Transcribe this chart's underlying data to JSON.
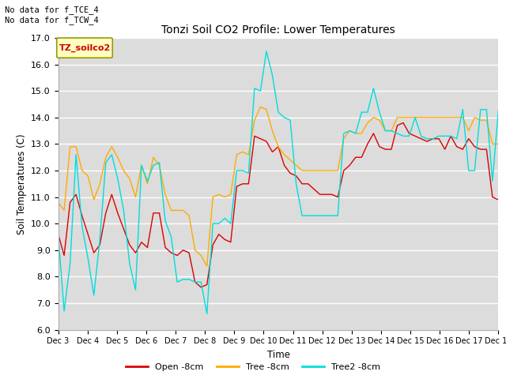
{
  "title": "Tonzi Soil CO2 Profile: Lower Temperatures",
  "xlabel": "Time",
  "ylabel": "Soil Temperatures (C)",
  "ylim": [
    6.0,
    17.0
  ],
  "yticks": [
    6.0,
    7.0,
    8.0,
    9.0,
    10.0,
    11.0,
    12.0,
    13.0,
    14.0,
    15.0,
    16.0,
    17.0
  ],
  "bg_color": "#dcdcdc",
  "note_text": "No data for f_TCE_4\nNo data for f_TCW_4",
  "legend_label_text": "TZ_soilco2",
  "xtick_labels": [
    "Dec 3",
    "Dec 4",
    "Dec 5",
    "Dec 6",
    "Dec 7",
    "Dec 8",
    "Dec 9",
    "Dec 10",
    "Dec 11",
    "Dec 12",
    "Dec 13",
    "Dec 14",
    "Dec 15",
    "Dec 16",
    "Dec 17",
    "Dec 18"
  ],
  "series": {
    "open": {
      "color": "#dd0000",
      "label": "Open -8cm",
      "values": [
        9.6,
        8.8,
        10.8,
        11.1,
        10.3,
        9.6,
        8.9,
        9.2,
        10.4,
        11.1,
        10.4,
        9.8,
        9.2,
        8.9,
        9.3,
        9.1,
        10.4,
        10.4,
        9.1,
        8.9,
        8.8,
        9.0,
        8.9,
        7.8,
        7.6,
        7.7,
        9.2,
        9.6,
        9.4,
        9.3,
        11.4,
        11.5,
        11.5,
        13.3,
        13.2,
        13.1,
        12.7,
        12.9,
        12.2,
        11.9,
        11.8,
        11.5,
        11.5,
        11.3,
        11.1,
        11.1,
        11.1,
        11.0,
        12.0,
        12.2,
        12.5,
        12.5,
        13.0,
        13.4,
        12.9,
        12.8,
        12.8,
        13.7,
        13.8,
        13.4,
        13.3,
        13.2,
        13.1,
        13.2,
        13.2,
        12.8,
        13.3,
        12.9,
        12.8,
        13.2,
        12.9,
        12.8,
        12.8,
        11.0,
        10.9
      ]
    },
    "tree": {
      "color": "#ffaa00",
      "label": "Tree -8cm",
      "values": [
        10.8,
        10.5,
        12.9,
        12.9,
        12.0,
        11.8,
        10.9,
        11.5,
        12.5,
        12.9,
        12.5,
        12.0,
        11.7,
        11.0,
        12.2,
        11.5,
        12.5,
        12.2,
        11.1,
        10.5,
        10.5,
        10.5,
        10.3,
        9.0,
        8.8,
        8.4,
        11.0,
        11.1,
        11.0,
        11.1,
        12.6,
        12.7,
        12.6,
        13.9,
        14.4,
        14.3,
        13.5,
        12.9,
        12.6,
        12.4,
        12.2,
        12.0,
        12.0,
        12.0,
        12.0,
        12.0,
        12.0,
        12.0,
        13.2,
        13.5,
        13.4,
        13.4,
        13.8,
        14.0,
        13.9,
        13.5,
        13.5,
        14.0,
        14.0,
        14.0,
        14.0,
        14.0,
        14.0,
        14.0,
        14.0,
        14.0,
        14.0,
        14.0,
        14.0,
        13.5,
        14.0,
        13.9,
        13.9,
        13.0,
        13.0
      ]
    },
    "tree2": {
      "color": "#00dddd",
      "label": "Tree2 -8cm",
      "values": [
        9.6,
        6.7,
        8.5,
        12.6,
        9.9,
        8.7,
        7.3,
        9.4,
        12.3,
        12.6,
        11.7,
        10.5,
        8.5,
        7.5,
        12.2,
        11.6,
        12.2,
        12.3,
        10.1,
        9.5,
        7.8,
        7.9,
        7.9,
        7.8,
        7.8,
        6.6,
        10.0,
        10.0,
        10.2,
        10.0,
        12.0,
        12.0,
        11.9,
        15.1,
        15.0,
        16.5,
        15.6,
        14.2,
        14.0,
        13.9,
        11.5,
        10.3,
        10.3,
        10.3,
        10.3,
        10.3,
        10.3,
        10.3,
        13.4,
        13.5,
        13.4,
        14.2,
        14.2,
        15.1,
        14.2,
        13.5,
        13.5,
        13.4,
        13.3,
        13.3,
        14.0,
        13.3,
        13.2,
        13.2,
        13.3,
        13.3,
        13.3,
        13.2,
        14.3,
        12.0,
        12.0,
        14.3,
        14.3,
        11.6,
        14.3
      ]
    }
  }
}
